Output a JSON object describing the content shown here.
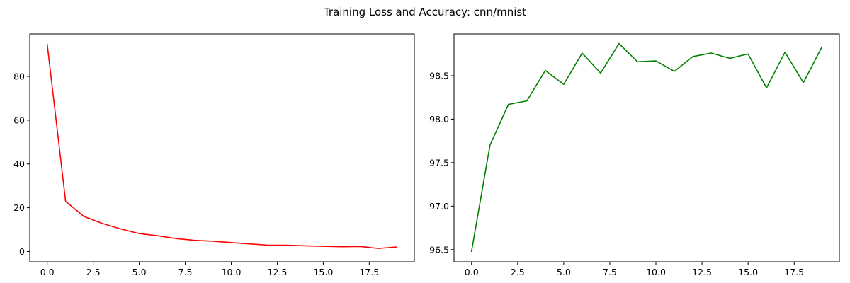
{
  "figure": {
    "title": "Training Loss and Accuracy: cnn/mnist"
  },
  "chart_data": [
    {
      "type": "line",
      "title": "",
      "xlabel": "",
      "ylabel": "",
      "xlim": [
        -0.95,
        19.95
      ],
      "ylim": [
        -4.7,
        99.4
      ],
      "xticks": [
        0.0,
        2.5,
        5.0,
        7.5,
        10.0,
        12.5,
        15.0,
        17.5
      ],
      "xtick_labels": [
        "0.0",
        "2.5",
        "5.0",
        "7.5",
        "10.0",
        "12.5",
        "15.0",
        "17.5"
      ],
      "yticks": [
        0,
        20,
        40,
        60,
        80
      ],
      "ytick_labels": [
        "0",
        "20",
        "40",
        "60",
        "80"
      ],
      "grid": false,
      "series": [
        {
          "color": "#ff0000",
          "x": [
            0,
            1,
            2,
            3,
            4,
            5,
            6,
            7,
            8,
            9,
            10,
            11,
            12,
            13,
            14,
            15,
            16,
            17,
            18,
            19
          ],
          "values": [
            94.7,
            22.9,
            16.0,
            12.8,
            10.3,
            8.2,
            7.2,
            5.9,
            5.1,
            4.7,
            4.1,
            3.5,
            2.9,
            2.9,
            2.6,
            2.4,
            2.2,
            2.3,
            1.4,
            2.1
          ]
        }
      ]
    },
    {
      "type": "line",
      "title": "",
      "xlabel": "",
      "ylabel": "",
      "xlim": [
        -0.95,
        19.95
      ],
      "ylim": [
        96.36,
        98.98
      ],
      "xticks": [
        0.0,
        2.5,
        5.0,
        7.5,
        10.0,
        12.5,
        15.0,
        17.5
      ],
      "xtick_labels": [
        "0.0",
        "2.5",
        "5.0",
        "7.5",
        "10.0",
        "12.5",
        "15.0",
        "17.5"
      ],
      "yticks": [
        96.5,
        97.0,
        97.5,
        98.0,
        98.5
      ],
      "ytick_labels": [
        "96.5",
        "97.0",
        "97.5",
        "98.0",
        "98.5"
      ],
      "grid": false,
      "series": [
        {
          "color": "#008000",
          "x": [
            0,
            1,
            2,
            3,
            4,
            5,
            6,
            7,
            8,
            9,
            10,
            11,
            12,
            13,
            14,
            15,
            16,
            17,
            18,
            19
          ],
          "values": [
            96.48,
            97.7,
            98.17,
            98.21,
            98.56,
            98.4,
            98.76,
            98.53,
            98.87,
            98.66,
            98.67,
            98.55,
            98.72,
            98.76,
            98.7,
            98.75,
            98.36,
            98.77,
            98.42,
            98.83
          ]
        }
      ]
    }
  ]
}
